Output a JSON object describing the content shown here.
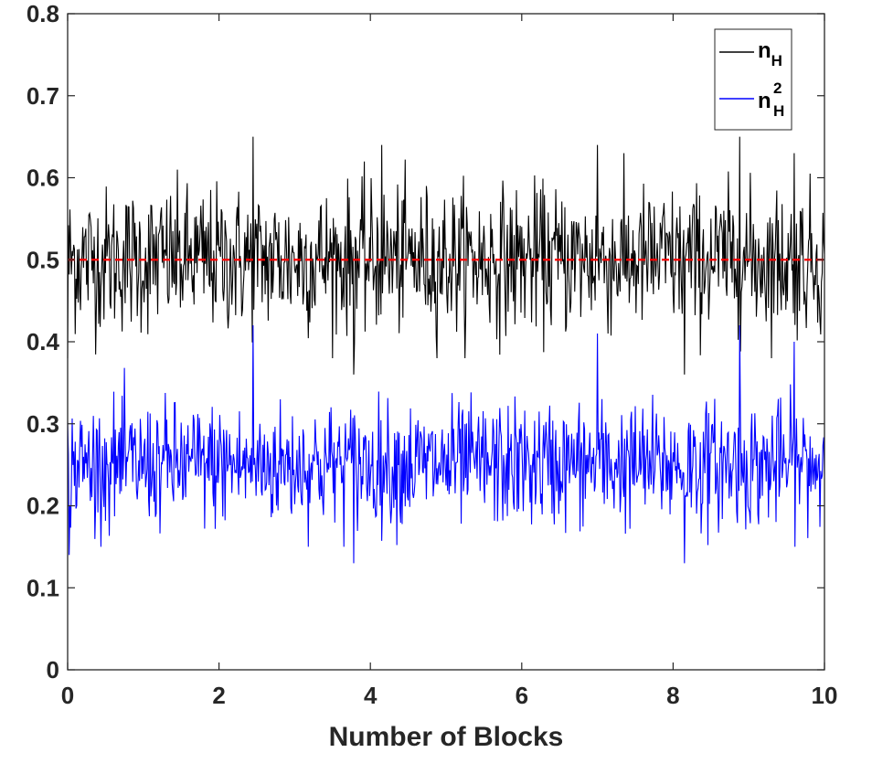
{
  "chart_data": {
    "type": "line",
    "title": "",
    "xlabel": "Number of Blocks",
    "ylabel": "",
    "xlim": [
      0,
      10
    ],
    "ylim": [
      0,
      0.8
    ],
    "xticks": [
      "0",
      "2",
      "4",
      "6",
      "8",
      "10"
    ],
    "yticks": [
      "0",
      "0.1",
      "0.2",
      "0.3",
      "0.4",
      "0.5",
      "0.6",
      "0.7",
      "0.8"
    ],
    "grid": false,
    "legend_position": "top-right",
    "series": [
      {
        "name": "n_H",
        "legend": {
          "base": "n",
          "sub": "H",
          "sup": ""
        },
        "color": "#000000",
        "approx_count": 1000,
        "mean": 0.5,
        "range": [
          0.36,
          0.65
        ],
        "notable_points": [
          {
            "x": 0.0,
            "y": 0.38
          },
          {
            "x": 2.45,
            "y": 0.65
          },
          {
            "x": 3.78,
            "y": 0.36
          },
          {
            "x": 4.15,
            "y": 0.64
          },
          {
            "x": 7.0,
            "y": 0.64
          },
          {
            "x": 8.15,
            "y": 0.36
          },
          {
            "x": 8.88,
            "y": 0.65
          },
          {
            "x": 9.6,
            "y": 0.63
          }
        ]
      },
      {
        "name": "n_H^2",
        "legend": {
          "base": "n",
          "sub": "H",
          "sup": "2"
        },
        "color": "#0000ff",
        "approx_count": 1000,
        "mean": 0.25,
        "range": [
          0.13,
          0.42
        ],
        "notable_points": [
          {
            "x": 0.02,
            "y": 0.14
          },
          {
            "x": 2.45,
            "y": 0.42
          },
          {
            "x": 3.78,
            "y": 0.13
          },
          {
            "x": 7.0,
            "y": 0.41
          },
          {
            "x": 8.15,
            "y": 0.13
          },
          {
            "x": 8.88,
            "y": 0.42
          },
          {
            "x": 9.6,
            "y": 0.4
          }
        ]
      }
    ],
    "reference_line": {
      "y": 0.5,
      "color": "#ff0000",
      "style": "dashed"
    }
  }
}
